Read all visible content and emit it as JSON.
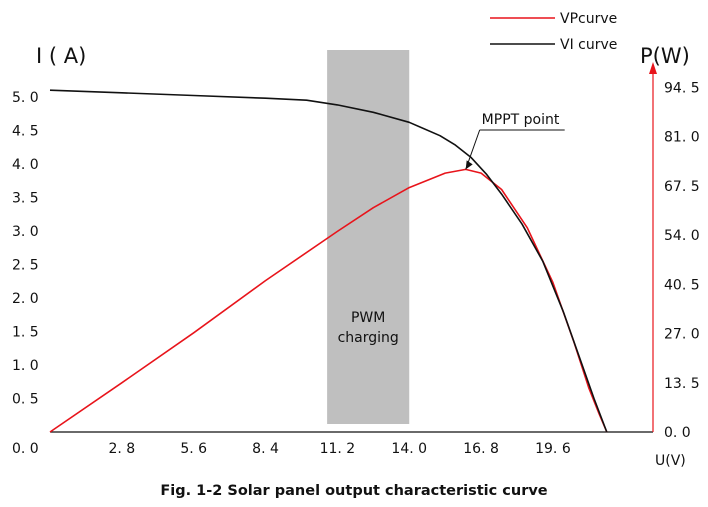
{
  "chart_data": {
    "type": "line",
    "caption": "Fig. 1-2 Solar panel output characteristic curve",
    "left_axis_title": "I ( A)",
    "right_axis_title": "P(W)",
    "x_axis_title": "U(V)",
    "x_ticks": [
      "2. 8",
      "5. 6",
      "8. 4",
      "11. 2",
      "14. 0",
      "16. 8",
      "19. 6"
    ],
    "x_tick_values": [
      2.8,
      5.6,
      8.4,
      11.2,
      14.0,
      16.8,
      19.6
    ],
    "left_ticks": [
      "0. 0",
      "0. 5",
      "1. 0",
      "1. 5",
      "2. 0",
      "2. 5",
      "3. 0",
      "3. 5",
      "4. 0",
      "4. 5",
      "5. 0"
    ],
    "left_tick_values": [
      0,
      0.5,
      1.0,
      1.5,
      2.0,
      2.5,
      3.0,
      3.5,
      4.0,
      4.5,
      5.0
    ],
    "right_ticks": [
      "0. 0",
      "13. 5",
      "27. 0",
      "40. 5",
      "54. 0",
      "67. 5",
      "81. 0",
      "94. 5"
    ],
    "right_tick_values": [
      0,
      13.5,
      27.0,
      40.5,
      54.0,
      67.5,
      81.0,
      94.5
    ],
    "xlim": [
      0,
      23.5
    ],
    "ylim_left": [
      0,
      5.55
    ],
    "ylim_right": [
      0,
      102.0
    ],
    "series": [
      {
        "name": "VPcurve",
        "axis": "right",
        "color": "#e8141b",
        "x": [
          0,
          2.8,
          5.6,
          8.4,
          11.2,
          12.6,
          14.0,
          15.4,
          16.2,
          16.8,
          17.6,
          18.6,
          19.6,
          20.4,
          21.0,
          21.4,
          21.7
        ],
        "y": [
          0,
          13.5,
          27.2,
          41.5,
          55.0,
          61.5,
          67.0,
          71.0,
          72.0,
          71.0,
          66.5,
          56.0,
          41.0,
          25.0,
          12.0,
          5.0,
          0
        ]
      },
      {
        "name": "VI curve",
        "axis": "left",
        "color": "#111111",
        "x": [
          0,
          2.8,
          5.6,
          8.4,
          10.0,
          11.2,
          12.6,
          14.0,
          15.2,
          15.8,
          16.4,
          17.0,
          17.6,
          18.4,
          19.2,
          20.0,
          20.6,
          21.2,
          21.7
        ],
        "y": [
          5.1,
          5.06,
          5.02,
          4.98,
          4.95,
          4.88,
          4.77,
          4.62,
          4.42,
          4.28,
          4.1,
          3.85,
          3.55,
          3.1,
          2.55,
          1.8,
          1.15,
          0.5,
          0
        ]
      }
    ],
    "annotations": [
      {
        "text": "MPPT point",
        "x": 16.2,
        "y_right": 72.0
      },
      {
        "text_lines": [
          "PWM",
          "charging"
        ],
        "x_start": 10.8,
        "x_end": 14.0
      }
    ],
    "legend_position": "top-right"
  }
}
